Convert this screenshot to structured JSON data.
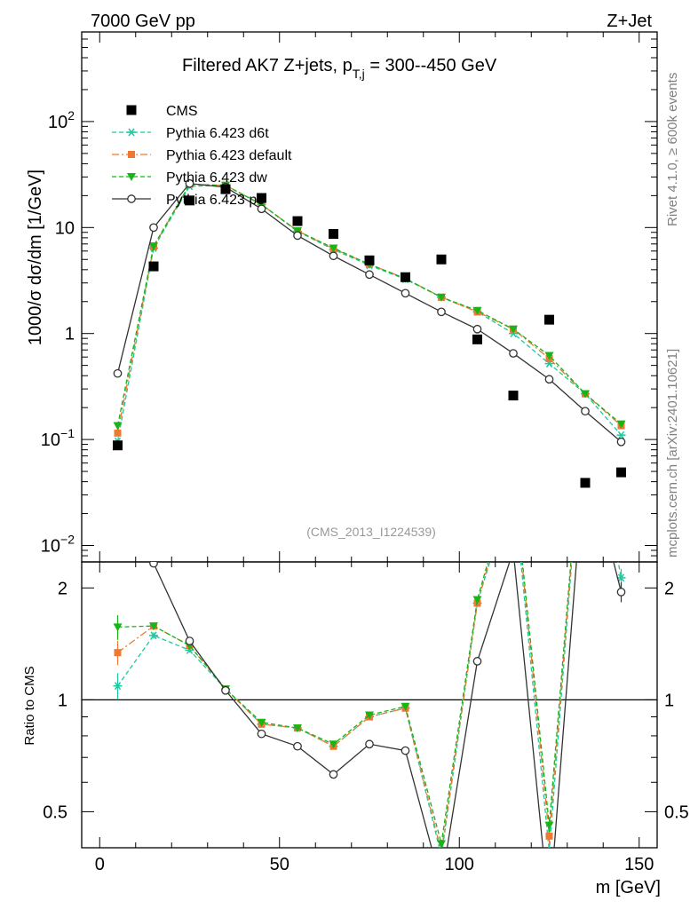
{
  "header": {
    "left": "7000 GeV pp",
    "right": "Z+Jet"
  },
  "side_labels": {
    "rivet": "Rivet 4.1.0, ≥ 600k events",
    "mcplots": "mcplots.cern.ch [arXiv:2401.10621]"
  },
  "chart_data": {
    "type": "scatter",
    "title": "Filtered AK7 Z+jets, p_{T,j} = 300--450 GeV",
    "title_main": "Filtered AK7 Z+jets, p",
    "title_sub": "T,j",
    "title_rest": " = 300--450 GeV",
    "analysis_id": "(CMS_2013_I1224539)",
    "xlabel": "m [GeV]",
    "ylabel": "1000/σ  dσ/dm [1/GeV]",
    "ratio_ylabel": "Ratio to CMS",
    "xlim": [
      -5,
      155
    ],
    "ylim": [
      0.007,
      700
    ],
    "yscale": "log",
    "ratio_ylim": [
      0.4,
      2.35
    ],
    "x_ticks": [
      {
        "value": 0,
        "label": "0"
      },
      {
        "value": 50,
        "label": "50"
      },
      {
        "value": 100,
        "label": "100"
      },
      {
        "value": 150,
        "label": "150"
      }
    ],
    "y_ticks": [
      {
        "value": 0.01,
        "base": "10",
        "exp": "−2"
      },
      {
        "value": 0.1,
        "base": "10",
        "exp": "−1"
      },
      {
        "value": 1,
        "base": "1",
        "exp": ""
      },
      {
        "value": 10,
        "base": "10",
        "exp": ""
      },
      {
        "value": 100,
        "base": "10",
        "exp": "2"
      }
    ],
    "ratio_ticks": [
      {
        "value": 0.5,
        "label": "0.5"
      },
      {
        "value": 1,
        "label": "1"
      },
      {
        "value": 2,
        "label": "2"
      }
    ],
    "x": [
      5,
      15,
      25,
      35,
      45,
      55,
      65,
      75,
      85,
      95,
      105,
      115,
      125,
      135,
      145
    ],
    "data": {
      "name": "CMS",
      "values": [
        0.088,
        4.3,
        18,
        23,
        19,
        11.5,
        8.7,
        4.9,
        3.4,
        5.0,
        0.88,
        0.26,
        1.35,
        0.039,
        0.049
      ]
    },
    "series": [
      {
        "name": "Pythia 6.423 d6t",
        "color": "#1fc8a0",
        "dash": "5,3",
        "marker": "star",
        "values": [
          0.096,
          6.4,
          24.5,
          25,
          16.5,
          9.2,
          6.2,
          4.4,
          3.25,
          2.2,
          1.6,
          1.0,
          0.52,
          0.27,
          0.11
        ],
        "ratio": [
          1.09,
          1.49,
          1.36,
          1.07,
          0.86,
          0.84,
          0.75,
          0.9,
          0.95,
          0.38,
          1.82,
          3.8,
          0.39,
          6.9,
          2.13
        ],
        "ratio_err": [
          0.09,
          0.03,
          0.02,
          0.02,
          0.01,
          0.01,
          0.01,
          0.01,
          0.01,
          0.01,
          0.03,
          0.05,
          0.02,
          0.1,
          0.12
        ]
      },
      {
        "name": "Pythia 6.423 default",
        "color": "#f07830",
        "dash": "8,3,2,3",
        "marker": "square",
        "values": [
          0.115,
          6.6,
          25.5,
          25,
          16.5,
          9.3,
          6.3,
          4.5,
          3.3,
          2.2,
          1.6,
          1.1,
          0.58,
          0.27,
          0.135
        ],
        "ratio": [
          1.34,
          1.58,
          1.4,
          1.07,
          0.86,
          0.84,
          0.75,
          0.9,
          0.95,
          0.39,
          1.82,
          4.0,
          0.43,
          6.9,
          2.7
        ],
        "ratio_err": [
          0.1,
          0.03,
          0.02,
          0.02,
          0.01,
          0.01,
          0.01,
          0.01,
          0.01,
          0.01,
          0.03,
          0.05,
          0.02,
          0.1,
          0.1
        ]
      },
      {
        "name": "Pythia 6.423 dw",
        "color": "#18b418",
        "dash": "5,3",
        "marker": "triangle",
        "values": [
          0.135,
          6.7,
          25.5,
          25,
          16.5,
          9.3,
          6.4,
          4.5,
          3.3,
          2.2,
          1.65,
          1.1,
          0.62,
          0.27,
          0.14
        ],
        "ratio": [
          1.57,
          1.58,
          1.4,
          1.07,
          0.87,
          0.84,
          0.76,
          0.91,
          0.96,
          0.41,
          1.86,
          4.1,
          0.46,
          6.9,
          2.8
        ],
        "ratio_err": [
          0.12,
          0.03,
          0.02,
          0.02,
          0.01,
          0.01,
          0.01,
          0.01,
          0.01,
          0.01,
          0.03,
          0.05,
          0.02,
          0.1,
          0.1
        ]
      },
      {
        "name": "Pythia 6.423 p0",
        "color": "#333333",
        "dash": "",
        "marker": "circle",
        "values": [
          0.42,
          10,
          26,
          24,
          15,
          8.4,
          5.4,
          3.6,
          2.4,
          1.6,
          1.1,
          0.65,
          0.37,
          0.185,
          0.095
        ],
        "ratio": [
          4.8,
          2.33,
          1.44,
          1.06,
          0.81,
          0.75,
          0.63,
          0.76,
          0.73,
          0.32,
          1.27,
          2.52,
          0.27,
          4.7,
          1.95
        ],
        "ratio_err": [
          0.3,
          0.04,
          0.02,
          0.02,
          0.01,
          0.01,
          0.01,
          0.01,
          0.01,
          0.01,
          0.02,
          0.05,
          0.02,
          0.15,
          0.12
        ]
      }
    ],
    "legend_position": "top-left"
  }
}
